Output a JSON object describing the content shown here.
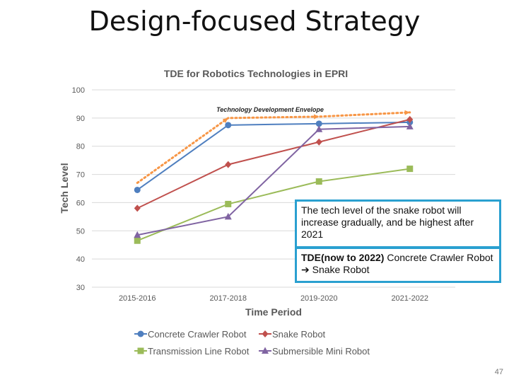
{
  "slide": {
    "title": "Design-focused Strategy",
    "page_number": "47"
  },
  "callouts": {
    "snake": "The tech level of the snake robot will increase gradually, and be highest after 2021",
    "tde_bold": "TDE(now to 2022)",
    "tde_rest": " Concrete Crawler Robot ➔ Snake Robot"
  },
  "chart_data": {
    "type": "line",
    "title": "TDE for Robotics Technologies in EPRI",
    "xlabel": "Time Period",
    "ylabel": "Tech Level",
    "categories": [
      "2015-2016",
      "2017-2018",
      "2019-2020",
      "2021-2022"
    ],
    "ylim": [
      30,
      100
    ],
    "yticks": [
      30,
      40,
      50,
      60,
      70,
      80,
      90,
      100
    ],
    "grid": true,
    "legend_position": "bottom",
    "series": [
      {
        "name": "Concrete Crawler Robot",
        "values": [
          64.5,
          87.5,
          88,
          88.5
        ],
        "color": "#4f7fbf",
        "marker": "circle"
      },
      {
        "name": "Snake Robot",
        "values": [
          58,
          73.5,
          81.5,
          89.5
        ],
        "color": "#c0504d",
        "marker": "diamond"
      },
      {
        "name": "Transmission Line Robot",
        "values": [
          46.5,
          59.5,
          67.5,
          72
        ],
        "color": "#9bbb59",
        "marker": "square"
      },
      {
        "name": "Submersible Mini Robot",
        "values": [
          48.5,
          55,
          86,
          87
        ],
        "color": "#8064a2",
        "marker": "triangle"
      }
    ],
    "envelope": {
      "label": "Technology Development Envelope",
      "values": [
        67,
        90,
        90.5,
        92
      ],
      "color": "#f79646"
    }
  }
}
